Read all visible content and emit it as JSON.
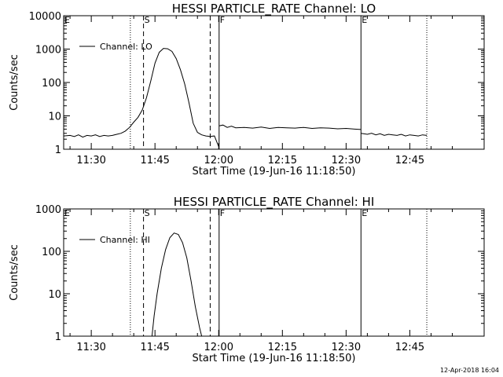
{
  "footer_timestamp": "12-Apr-2018 16:04",
  "chart_data": [
    {
      "type": "line",
      "title": "HESSI PARTICLE_RATE Channel: LO",
      "xlabel": "Start Time (19-Jun-16 11:18:50)",
      "ylabel": "Counts/sec",
      "yscale": "log",
      "ylim": [
        1,
        10000
      ],
      "xlim_minutes_of_day": [
        683.5,
        782.5
      ],
      "x_tick_labels": [
        "11:30",
        "11:45",
        "12:00",
        "12:15",
        "12:30",
        "12:45"
      ],
      "x_tick_minutes": [
        690,
        705,
        720,
        735,
        750,
        765
      ],
      "y_tick_labels": [
        "1",
        "10",
        "100",
        "1000",
        "10000"
      ],
      "y_tick_values": [
        1,
        10,
        100,
        1000,
        10000
      ],
      "legend": {
        "label": "Channel: LO",
        "position": "top-left"
      },
      "markers": [
        {
          "label": "E",
          "minute": 683.5,
          "style": "solid"
        },
        {
          "label": "",
          "minute": 699.2,
          "style": "dotted"
        },
        {
          "label": "S",
          "minute": 702.3,
          "style": "dashed"
        },
        {
          "label": "",
          "minute": 718.0,
          "style": "dashed"
        },
        {
          "label": "F",
          "minute": 720.1,
          "style": "solid"
        },
        {
          "label": "E",
          "minute": 753.5,
          "style": "solid"
        },
        {
          "label": "",
          "minute": 769.0,
          "style": "dotted"
        }
      ],
      "series": [
        {
          "name": "Channel: LO",
          "segments": [
            {
              "x": [
                683.5,
                685,
                686,
                687,
                688,
                689,
                690,
                691,
                692,
                693,
                694,
                695,
                696,
                697,
                698,
                699,
                700,
                701,
                702,
                703,
                704,
                705,
                706,
                707,
                708,
                709,
                710,
                711,
                712,
                713,
                714,
                715,
                716,
                717,
                718,
                719,
                720
              ],
              "y": [
                2.5,
                2.6,
                2.4,
                2.7,
                2.3,
                2.6,
                2.5,
                2.7,
                2.4,
                2.6,
                2.5,
                2.6,
                2.8,
                3.0,
                3.5,
                4.5,
                6.5,
                9,
                15,
                35,
                110,
                380,
                800,
                1050,
                1020,
                850,
                520,
                240,
                90,
                25,
                6,
                3.2,
                2.7,
                2.5,
                2.4,
                2.5,
                1.2
              ]
            },
            {
              "x": [
                720.1,
                721,
                722,
                723,
                724,
                726,
                728,
                730,
                732,
                734,
                736,
                738,
                740,
                742,
                744,
                746,
                748,
                750,
                752,
                753.5
              ],
              "y": [
                5,
                5.3,
                4.5,
                4.9,
                4.4,
                4.5,
                4.3,
                4.6,
                4.2,
                4.5,
                4.4,
                4.3,
                4.5,
                4.2,
                4.4,
                4.3,
                4.1,
                4.2,
                4.0,
                3.9
              ]
            },
            {
              "x": [
                753.5,
                755,
                756,
                757,
                758,
                759,
                760,
                761,
                762,
                763,
                764,
                765,
                766,
                767,
                768,
                769
              ],
              "y": [
                3.0,
                2.8,
                3.0,
                2.7,
                2.9,
                2.6,
                2.8,
                2.7,
                2.6,
                2.8,
                2.5,
                2.7,
                2.6,
                2.5,
                2.7,
                2.6
              ]
            }
          ]
        }
      ]
    },
    {
      "type": "line",
      "title": "HESSI PARTICLE_RATE Channel: HI",
      "xlabel": "Start Time (19-Jun-16 11:18:50)",
      "ylabel": "Counts/sec",
      "yscale": "log",
      "ylim": [
        1,
        1000
      ],
      "xlim_minutes_of_day": [
        683.5,
        782.5
      ],
      "x_tick_labels": [
        "11:30",
        "11:45",
        "12:00",
        "12:15",
        "12:30",
        "12:45"
      ],
      "x_tick_minutes": [
        690,
        705,
        720,
        735,
        750,
        765
      ],
      "y_tick_labels": [
        "1",
        "10",
        "100",
        "1000"
      ],
      "y_tick_values": [
        1,
        10,
        100,
        1000
      ],
      "legend": {
        "label": "Channel: HI",
        "position": "top-left"
      },
      "markers": [
        {
          "label": "E",
          "minute": 683.5,
          "style": "solid"
        },
        {
          "label": "",
          "minute": 699.2,
          "style": "dotted"
        },
        {
          "label": "S",
          "minute": 702.3,
          "style": "dashed"
        },
        {
          "label": "",
          "minute": 718.0,
          "style": "dashed"
        },
        {
          "label": "F",
          "minute": 720.1,
          "style": "solid"
        },
        {
          "label": "E",
          "minute": 753.5,
          "style": "solid"
        },
        {
          "label": "",
          "minute": 769.0,
          "style": "dotted"
        }
      ],
      "series": [
        {
          "name": "Channel: HI",
          "segments": [
            {
              "x": [
                704.3,
                704.8,
                705.5,
                706.5,
                707.5,
                708.5,
                709.5,
                710.5,
                711.5,
                712.5,
                713.5,
                714.5,
                715.5,
                716.0
              ],
              "y": [
                1,
                3,
                10,
                40,
                110,
                210,
                270,
                250,
                160,
                70,
                20,
                5,
                1.6,
                1
              ]
            }
          ]
        }
      ]
    }
  ]
}
